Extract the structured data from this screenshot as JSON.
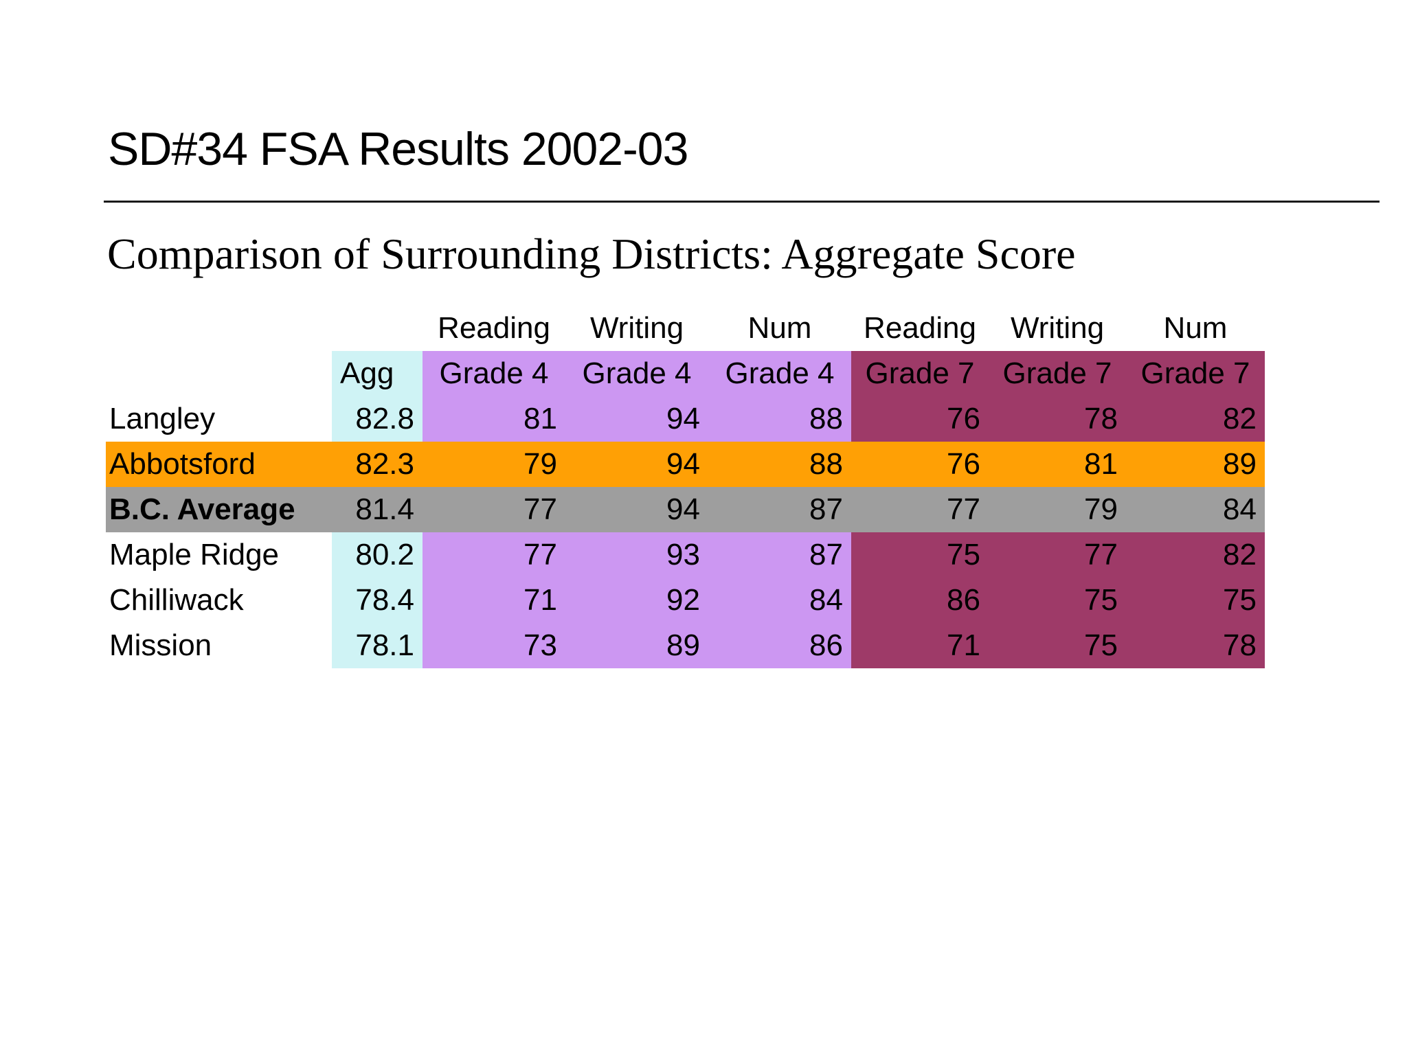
{
  "slide": {
    "title": "SD#34 FSA Results 2002-03",
    "subtitle": "Comparison of Surrounding Districts: Aggregate Score"
  },
  "table": {
    "group_headers": [
      "Reading",
      "Writing",
      "Num",
      "Reading",
      "Writing",
      "Num"
    ],
    "column_headers": [
      "Agg",
      "Grade 4",
      "Grade 4",
      "Grade 4",
      "Grade 7",
      "Grade 7",
      "Grade 7"
    ],
    "rows": [
      {
        "label": "Langley",
        "values": [
          "82.8",
          "81",
          "94",
          "88",
          "76",
          "78",
          "82"
        ],
        "highlight": "none"
      },
      {
        "label": "Abbotsford",
        "values": [
          "82.3",
          "79",
          "94",
          "88",
          "76",
          "81",
          "89"
        ],
        "highlight": "orange"
      },
      {
        "label": "B.C. Average",
        "values": [
          "81.4",
          "77",
          "94",
          "87",
          "77",
          "79",
          "84"
        ],
        "highlight": "gray"
      },
      {
        "label": "Maple Ridge",
        "values": [
          "80.2",
          "77",
          "93",
          "87",
          "75",
          "77",
          "82"
        ],
        "highlight": "none"
      },
      {
        "label": "Chilliwack",
        "values": [
          "78.4",
          "71",
          "92",
          "84",
          "86",
          "75",
          "75"
        ],
        "highlight": "none"
      },
      {
        "label": "Mission",
        "values": [
          "78.1",
          "73",
          "89",
          "86",
          "71",
          "75",
          "78"
        ],
        "highlight": "none"
      }
    ]
  },
  "colors": {
    "agg-bg": "#CFF3F5",
    "grade4-bg": "#CC97F2",
    "grade7-bg": "#9E3A68",
    "highlight-orange": "#FFA005",
    "highlight-gray": "#9E9E9E",
    "text": "#000000",
    "rule": "#1A1A1A"
  }
}
